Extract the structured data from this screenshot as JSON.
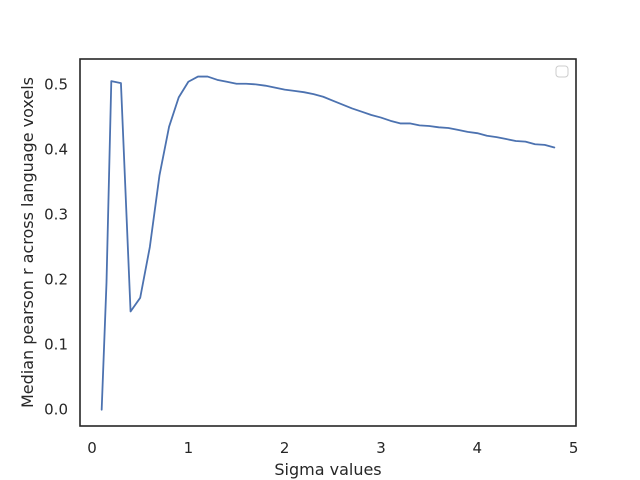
{
  "chart_data": {
    "type": "line",
    "title": "",
    "xlabel": "Sigma values",
    "ylabel": "Median pearson r across language voxels",
    "xlim": [
      -0.125,
      5.025
    ],
    "ylim": [
      -0.025,
      0.539
    ],
    "x_ticks": [
      "0",
      "1",
      "2",
      "3",
      "4",
      "5"
    ],
    "y_ticks": [
      "0.0",
      "0.1",
      "0.2",
      "0.3",
      "0.4",
      "0.5"
    ],
    "grid": false,
    "legend": {
      "placement": "upper right",
      "entries": []
    },
    "colors": {
      "line": "#4c72b0",
      "frame": "#262626",
      "text": "#262626"
    },
    "series": [
      {
        "x": [
          0.1,
          0.15,
          0.2,
          0.3,
          0.4,
          0.5,
          0.6,
          0.7,
          0.8,
          0.9,
          1.0,
          1.1,
          1.2,
          1.3,
          1.4,
          1.5,
          1.6,
          1.7,
          1.8,
          1.9,
          2.0,
          2.1,
          2.2,
          2.3,
          2.4,
          2.5,
          2.6,
          2.7,
          2.8,
          2.9,
          3.0,
          3.1,
          3.2,
          3.3,
          3.4,
          3.5,
          3.6,
          3.7,
          3.8,
          3.9,
          4.0,
          4.1,
          4.2,
          4.3,
          4.4,
          4.5,
          4.6,
          4.7,
          4.8
        ],
        "values": [
          0.0,
          0.195,
          0.505,
          0.502,
          0.151,
          0.172,
          0.25,
          0.36,
          0.435,
          0.48,
          0.504,
          0.512,
          0.512,
          0.507,
          0.504,
          0.501,
          0.501,
          0.5,
          0.498,
          0.495,
          0.492,
          0.49,
          0.488,
          0.485,
          0.481,
          0.475,
          0.469,
          0.463,
          0.458,
          0.453,
          0.449,
          0.444,
          0.44,
          0.44,
          0.437,
          0.436,
          0.434,
          0.433,
          0.43,
          0.427,
          0.425,
          0.421,
          0.419,
          0.416,
          0.413,
          0.412,
          0.408,
          0.407,
          0.403
        ]
      }
    ]
  }
}
